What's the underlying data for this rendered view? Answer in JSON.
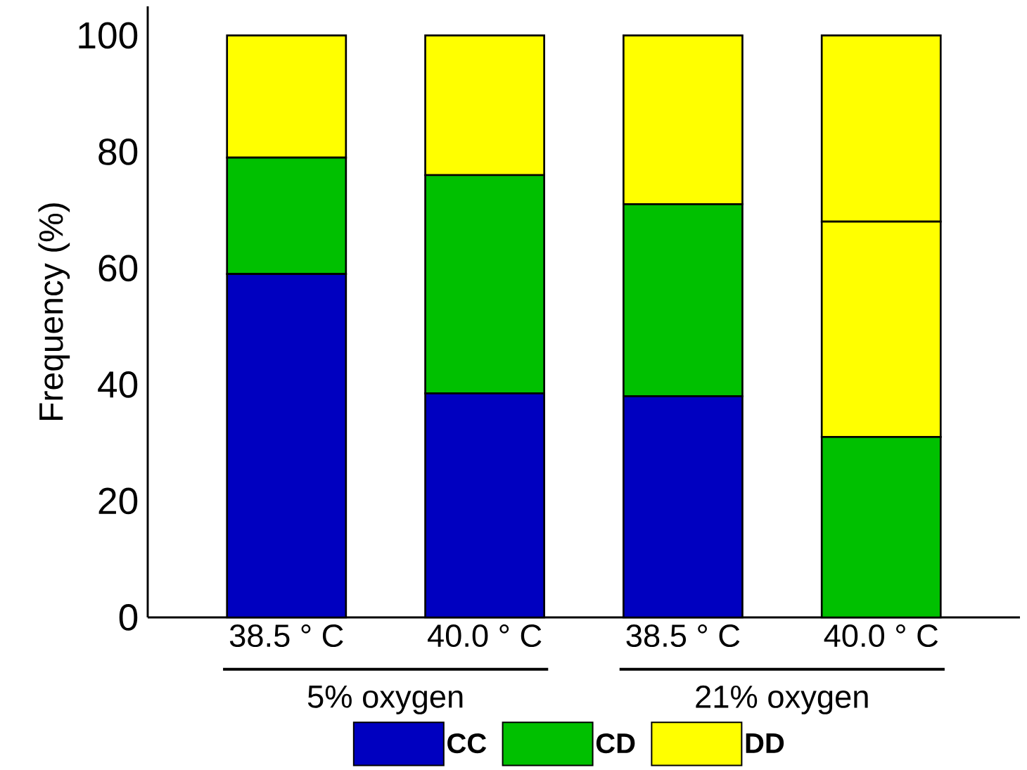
{
  "chart_data": {
    "type": "bar",
    "stacked": true,
    "ylabel": "Frequency (%)",
    "categories": [
      "38.5 ° C",
      "40.0 ° C",
      "38.5 ° C",
      "40.0 ° C"
    ],
    "series": [
      {
        "name": "CC",
        "color": "#0000c0",
        "values": [
          59,
          38.5,
          38,
          0
        ]
      },
      {
        "name": "CD",
        "color": "#00c000",
        "values": [
          20,
          37.5,
          33,
          31
        ]
      },
      {
        "name": "DD",
        "color": "#ffff00",
        "values": [
          21,
          24,
          29,
          37
        ]
      },
      {
        "color": "#ffff00",
        "values": [
          0,
          0,
          0,
          32
        ]
      }
    ],
    "ylim": [
      0,
      105
    ],
    "yticks": [
      0,
      20,
      40,
      60,
      80,
      100
    ],
    "legend": "bottom",
    "annotations": [
      "5% oxygen",
      "21% oxygen"
    ]
  }
}
